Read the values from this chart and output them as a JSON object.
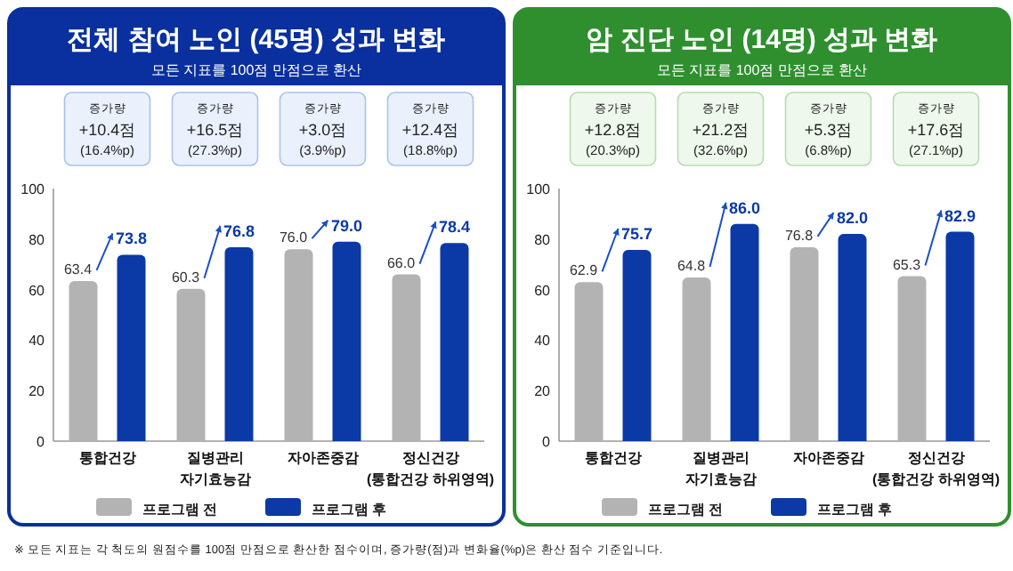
{
  "chart_data": [
    {
      "type": "bar",
      "title": "전체 참여 노인 (45명) 성과 변화",
      "subtitle": "모든 지표를 100점 만점으로 환산",
      "categories": [
        "통합건강",
        "질병관리 자기효능감",
        "자아존중감",
        "정신건강 (통합건강 하위영역)"
      ],
      "series": [
        {
          "name": "프로그램 전",
          "color": "#b3b3b3",
          "values": [
            63.4,
            60.3,
            76.0,
            66.0
          ],
          "value_labels": [
            "63.4",
            "60.3",
            "76.0",
            "66.0"
          ]
        },
        {
          "name": "프로그램 후",
          "color": "#0b3aa6",
          "values": [
            73.8,
            76.8,
            79.0,
            78.4
          ],
          "value_labels": [
            "73.8",
            "76.8",
            "79.0",
            "78.4"
          ]
        }
      ],
      "ylim": [
        0,
        100
      ],
      "yticks": [
        0,
        20,
        40,
        60,
        80,
        100
      ],
      "legend": "bottom",
      "grid": false,
      "annotations": [
        "증가량 +10.4점 (16.4%p)",
        "증가량 +16.5점 (27.3%p)",
        "증가량 +3.0점 (3.9%p)",
        "증가량 +12.4점 (18.8%p)",
        "※ 모든 지표는 각 척도의 원점수를 100점 만점으로 환산한 점수이며, 증가량(점)과 변화율(%p)은 환산 점수 기준입니다."
      ]
    },
    {
      "type": "bar",
      "title": "암 진단 노인 (14명) 성과 변화",
      "subtitle": "모든 지표를 100점 만점으로 환산",
      "categories": [
        "통합건강",
        "질병관리 자기효능감",
        "자아존중감",
        "정신건강 (통합건강 하위영역)"
      ],
      "series": [
        {
          "name": "프로그램 전",
          "color": "#b3b3b3",
          "values": [
            62.9,
            64.8,
            76.8,
            65.3
          ],
          "value_labels": [
            "62.9",
            "64.8",
            "76.8",
            "65.3"
          ]
        },
        {
          "name": "프로그램 후",
          "color": "#0b3aa6",
          "values": [
            75.7,
            86.0,
            82.0,
            82.9
          ],
          "value_labels": [
            "75.7",
            "86.0",
            "82.0",
            "82.9"
          ]
        }
      ],
      "ylim": [
        0,
        100
      ],
      "yticks": [
        0,
        20,
        40,
        60,
        80,
        100
      ],
      "legend": "bottom",
      "grid": false,
      "annotations": [
        "증가량 +12.8점 (20.3%p)",
        "증가량 +21.2점 (32.6%p)",
        "증가량 +5.3점 (6.8%p)",
        "증가량 +17.6점 (27.1%p)"
      ]
    }
  ]
}
